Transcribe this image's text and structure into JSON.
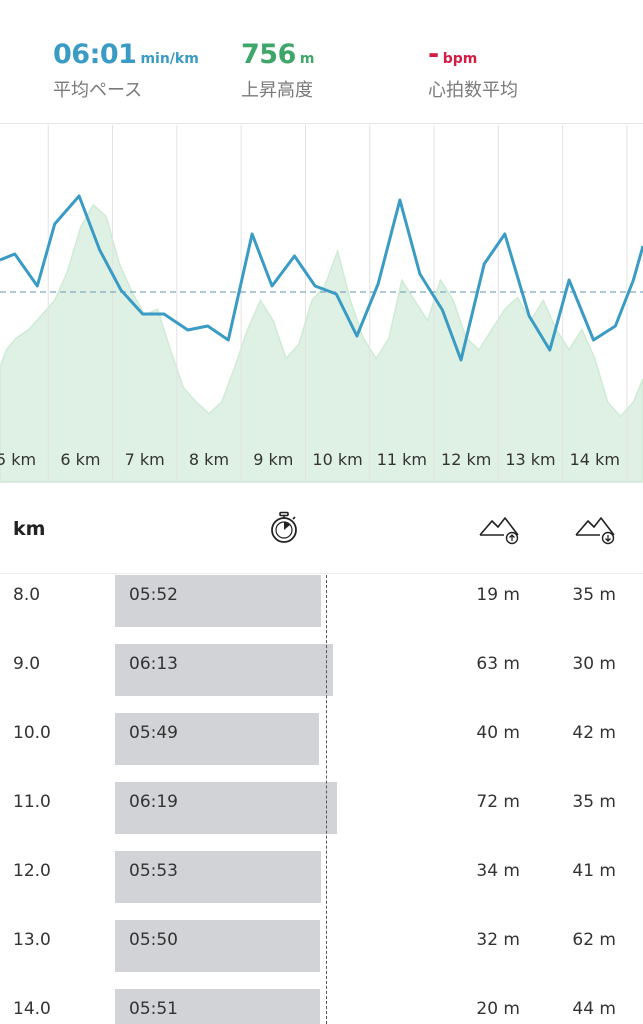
{
  "summary": {
    "pace": {
      "value": "06:01",
      "unit": "min/km",
      "label": "平均ペース"
    },
    "elevation": {
      "value": "756",
      "unit": "m",
      "label": "上昇高度"
    },
    "heart_rate": {
      "value": "-",
      "unit": "bpm",
      "label": "心拍数平均"
    }
  },
  "colors": {
    "pace_line": "#3a9bc4",
    "elevation_fill": "#dff1e4",
    "elevation_stroke": "#cdebd5",
    "heart_rate": "#d21d45",
    "split_bar": "#d1d3d6"
  },
  "chart_data": {
    "type": "line",
    "km_labels": [
      "5 km",
      "6 km",
      "7 km",
      "8 km",
      "9 km",
      "10 km",
      "11 km",
      "12 km",
      "13 km",
      "14 km"
    ],
    "x_range_km": [
      4.75,
      14.75
    ],
    "pace_series": {
      "name": "",
      "x_km": [
        4.75,
        4.98,
        5.33,
        5.6,
        5.98,
        6.3,
        6.63,
        6.97,
        7.3,
        7.67,
        7.98,
        8.3,
        8.67,
        8.98,
        9.33,
        9.65,
        9.98,
        10.3,
        10.63,
        10.97,
        11.28,
        11.63,
        11.92,
        12.28,
        12.6,
        12.98,
        13.3,
        13.6,
        13.98,
        14.32,
        14.6,
        14.75
      ],
      "pace_min_per_km": [
        5.85,
        5.82,
        5.98,
        5.67,
        5.53,
        5.8,
        6.0,
        6.12,
        6.12,
        6.2,
        6.18,
        6.25,
        5.72,
        5.98,
        5.83,
        5.98,
        6.02,
        6.23,
        5.97,
        5.55,
        5.92,
        6.1,
        6.35,
        5.87,
        5.72,
        6.13,
        6.3,
        5.95,
        6.25,
        6.18,
        5.95,
        5.78
      ]
    },
    "elevation_series": {
      "name": "",
      "note": "",
      "x_km": [
        4.75,
        4.85,
        5.0,
        5.2,
        5.4,
        5.6,
        5.8,
        6.0,
        6.2,
        6.4,
        6.6,
        6.8,
        7.0,
        7.2,
        7.4,
        7.6,
        7.8,
        8.0,
        8.2,
        8.4,
        8.6,
        8.8,
        9.0,
        9.2,
        9.4,
        9.6,
        9.8,
        10.0,
        10.2,
        10.4,
        10.6,
        10.8,
        11.0,
        11.2,
        11.4,
        11.6,
        11.8,
        12.0,
        12.2,
        12.4,
        12.6,
        12.8,
        13.0,
        13.2,
        13.4,
        13.6,
        13.8,
        14.0,
        14.2,
        14.4,
        14.6,
        14.75
      ],
      "relative_level": [
        0.32,
        0.38,
        0.42,
        0.45,
        0.5,
        0.55,
        0.65,
        0.8,
        0.88,
        0.84,
        0.68,
        0.58,
        0.5,
        0.52,
        0.38,
        0.25,
        0.2,
        0.16,
        0.2,
        0.32,
        0.45,
        0.55,
        0.48,
        0.35,
        0.4,
        0.55,
        0.6,
        0.72,
        0.55,
        0.42,
        0.35,
        0.42,
        0.62,
        0.55,
        0.48,
        0.62,
        0.55,
        0.42,
        0.38,
        0.45,
        0.52,
        0.56,
        0.48,
        0.55,
        0.45,
        0.38,
        0.45,
        0.35,
        0.2,
        0.15,
        0.2,
        0.28
      ]
    },
    "average_pace_min_per_km": 6.01,
    "pace_axis_range": [
      5.3,
      6.7
    ],
    "grid": true
  },
  "table": {
    "headers": {
      "km": "km"
    },
    "rows": [
      {
        "km": "8.0",
        "pace": "05:52",
        "ascent": "19 m",
        "descent": "35 m",
        "pace_seconds": 352
      },
      {
        "km": "9.0",
        "pace": "06:13",
        "ascent": "63 m",
        "descent": "30 m",
        "pace_seconds": 373
      },
      {
        "km": "10.0",
        "pace": "05:49",
        "ascent": "40 m",
        "descent": "42 m",
        "pace_seconds": 349
      },
      {
        "km": "11.0",
        "pace": "06:19",
        "ascent": "72 m",
        "descent": "35 m",
        "pace_seconds": 379
      },
      {
        "km": "12.0",
        "pace": "05:53",
        "ascent": "34 m",
        "descent": "41 m",
        "pace_seconds": 353
      },
      {
        "km": "13.0",
        "pace": "05:50",
        "ascent": "32 m",
        "descent": "62 m",
        "pace_seconds": 350
      },
      {
        "km": "14.0",
        "pace": "05:51",
        "ascent": "20 m",
        "descent": "44 m",
        "pace_seconds": 351
      }
    ],
    "average_pace_seconds": 361
  }
}
